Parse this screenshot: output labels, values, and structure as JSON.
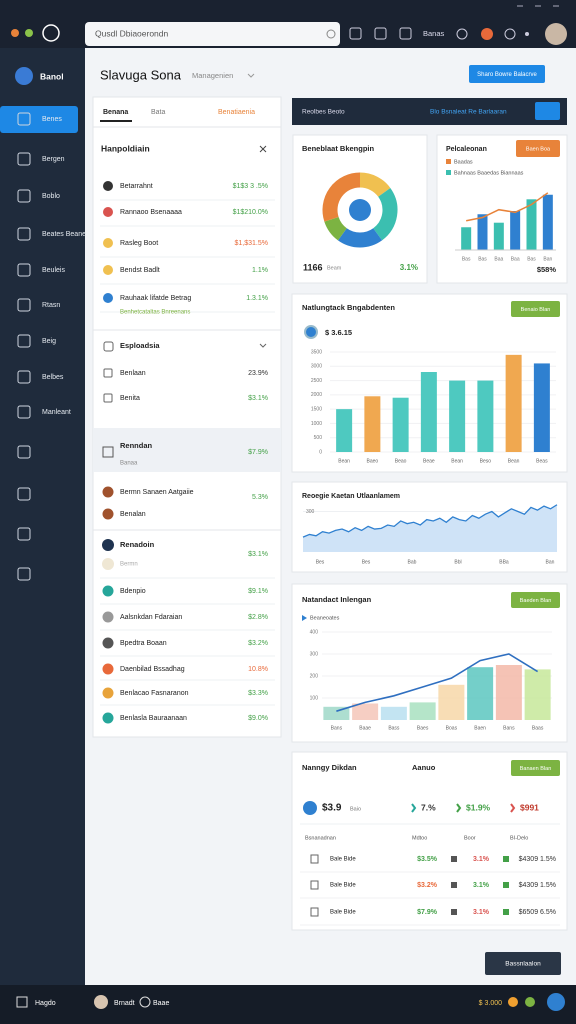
{
  "topbar": {
    "search": "Qusdl Dbiaoerondn",
    "account": "Banas"
  },
  "sidebar": {
    "user": "Banol",
    "items": [
      "Benes",
      "Bergen",
      "Boblo",
      "Beates Beane",
      "Beuleis",
      "Rtasn",
      "Beig",
      "Belbes",
      "Manleant"
    ]
  },
  "header": {
    "title": "Slavuga Sona",
    "dropdown": "Managenien",
    "button": "Sharo Bowre Balacrve"
  },
  "list_panel": {
    "tabs": [
      "Benana",
      "Bata",
      "Benatiaenia"
    ],
    "title": "Hanpoldiain",
    "top_items": [
      {
        "label": "Betarrahnt",
        "value": "$1$3 3 .5%"
      },
      {
        "label": "Rannaoo Bsenaaaa",
        "value": "$1$210.0%"
      },
      {
        "label": "Rasleg Boot",
        "value": "$1,$31.5%"
      },
      {
        "label": "Bendst Badlt",
        "value": "1.1%"
      },
      {
        "label": "Rauhaak lifatde Betrag",
        "value": "1.3.1%"
      }
    ],
    "top_item_note": "Benhetcataltas Bnreenans",
    "section": "Esploadsia",
    "section_items": [
      {
        "label": "Benlaan",
        "value": "23.9%"
      },
      {
        "label": "Benita",
        "value": "$3.1%"
      }
    ],
    "group": {
      "title": "Renndan",
      "subtitle": "Banaa",
      "value": "$7.9%"
    },
    "group_items": [
      {
        "label": "Bermn Sanaen Aatgaiie",
        "value": "5.3%"
      },
      {
        "label": "Benalan"
      }
    ],
    "featured": {
      "title": "Renadoin",
      "subtitle": "Bermn",
      "value": "$3.1%"
    },
    "bottom_items": [
      {
        "label": "Bdenpio",
        "value": "$9.1%"
      },
      {
        "label": "Aalsnkdan Fdaraian",
        "value": "$2.8%"
      },
      {
        "label": "Bpedtra Boaan",
        "value": "$3.2%"
      },
      {
        "label": "Daenbilad Bssadhag",
        "value": "10.8%"
      },
      {
        "label": "Benlacao Fasnaranon",
        "value": "$3.3%"
      },
      {
        "label": "Benlasla Bauraanaan",
        "value": "$9.0%"
      }
    ]
  },
  "toolbar": {
    "left": "Reolbes Beoto",
    "link": "Blo Bsnaleat Re Barlaaran"
  },
  "donut_card": {
    "title": "Beneblaat Bkengpin",
    "values": [
      15,
      25,
      20,
      10,
      30
    ],
    "colors": [
      "#f0c050",
      "#3bbfb0",
      "#2f80d0",
      "#7cb342",
      "#e8833a"
    ],
    "total": "1166",
    "total_label": "Beam",
    "change": "3.1%"
  },
  "mini_bar_card": {
    "title": "Pelcaleonan",
    "button": "Baen Boa",
    "legend": [
      "Baadas",
      "Bahnaas Baaedas Biannaas"
    ],
    "categories": [
      "Bas",
      "Bas",
      "Baa",
      "Baa",
      "Bas",
      "Ban"
    ],
    "bars": [
      35,
      55,
      42,
      60,
      78,
      85
    ],
    "colors": [
      "#3bbfb0",
      "#2f80d0",
      "#3bbfb0",
      "#2f80d0",
      "#3bbfb0",
      "#2f80d0"
    ],
    "line": [
      45,
      50,
      62,
      58,
      70,
      88
    ],
    "line_color": "#e8833a",
    "ylim": [
      0,
      100
    ],
    "change": "$58%"
  },
  "bar_card": {
    "title": "Natlungtack Bngabdenten",
    "button": "Benaio Blan",
    "metric": "$ 3.6.15",
    "ylim": [
      0,
      3500
    ],
    "yticks": [
      0,
      500,
      1000,
      1500,
      2000,
      2500,
      3000,
      3500
    ],
    "categories": [
      "Bean",
      "Baeo",
      "Beao",
      "Beae",
      "Bean",
      "Beso",
      "Bean",
      "Beas"
    ],
    "values": [
      1500,
      1950,
      1900,
      2800,
      2500,
      2500,
      3400,
      3100
    ],
    "colors": [
      "#4ec9c0",
      "#f0a850",
      "#4ec9c0",
      "#4ec9c0",
      "#4ec9c0",
      "#4ec9c0",
      "#f0a850",
      "#2f80d0"
    ]
  },
  "area_card": {
    "title": "Reoegie Kaetan Utlaanlamem",
    "ylim": [
      0,
      400
    ],
    "yticks": [
      100,
      300
    ],
    "x_labels": [
      "Bes",
      "Bes",
      "Bab",
      "Bbl",
      "BBa",
      "Ban"
    ],
    "values": [
      110,
      130,
      120,
      150,
      140,
      160,
      170,
      150,
      180,
      160,
      190,
      170,
      175,
      200,
      190,
      230,
      210,
      220,
      200,
      240,
      230,
      250,
      220,
      260,
      240,
      230,
      270,
      250,
      280,
      300,
      260,
      290,
      320,
      300,
      280,
      330,
      310,
      340,
      320,
      350
    ],
    "color": "#2f80d0"
  },
  "combo_card": {
    "title": "Natandact Inlengan",
    "button": "Baeden Blan",
    "legend": "Beaneoates",
    "ylim": [
      0,
      400
    ],
    "yticks": [
      100,
      200,
      300,
      400
    ],
    "categories": [
      "Bans",
      "Baae",
      "Bass",
      "Baes",
      "Boas",
      "Baen",
      "Bans",
      "Baas"
    ],
    "bars": [
      60,
      75,
      60,
      80,
      160,
      240,
      250,
      230
    ],
    "colors": [
      "#9fd8c8",
      "#f4c6b8",
      "#b9dff0",
      "#a8e0c0",
      "#f7d7a8",
      "#5cc7c0",
      "#f3b8a8",
      "#c7e89a"
    ],
    "line": [
      40,
      80,
      110,
      150,
      190,
      270,
      300,
      220
    ],
    "line_color": "#2f6fc0"
  },
  "stats_card": {
    "title": "Nanngy Dikdan",
    "column": "Aanuo",
    "button": "Banaen Blan",
    "metric": "$3.9",
    "metric_label": "Baio",
    "stats": [
      "7.%",
      "$1.9%",
      "$991"
    ],
    "table_header": [
      "Bsnanadnan",
      "Mdtoo",
      "Boor",
      "BI-Delo"
    ],
    "rows": [
      {
        "label": "Bale Bide",
        "values": [
          "$3.5%",
          "3.1%",
          "$4309 1.5%"
        ]
      },
      {
        "label": "Bale Bide",
        "values": [
          "$3.2%",
          "3.1%",
          "$4309 1.5%"
        ]
      },
      {
        "label": "Bale Bide",
        "values": [
          "$7.9%",
          "3.1%",
          "$6509 6.5%"
        ]
      }
    ]
  },
  "corner_button": "Bassnlaalon",
  "statusbar": {
    "app": "Hagdo",
    "user": "Brnadt",
    "status": "Baae",
    "balance": "$ 3.000"
  }
}
